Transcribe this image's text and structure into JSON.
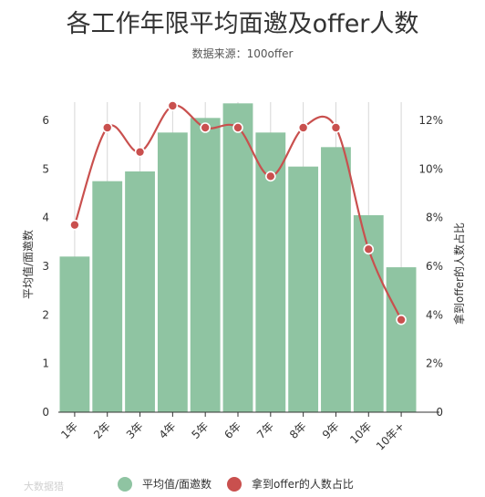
{
  "chart_data": {
    "type": "bar+line",
    "title": "各工作年限平均面邀及offer人数",
    "subtitle": "数据来源：100offer",
    "categories": [
      "1年",
      "2年",
      "3年",
      "4年",
      "5年",
      "6年",
      "7年",
      "8年",
      "9年",
      "10年",
      "10年+"
    ],
    "series": [
      {
        "name": "平均值/面邀数",
        "type": "bar",
        "axis": "left",
        "color": "#8fc4a2",
        "values": [
          3.2,
          4.75,
          4.95,
          5.75,
          6.05,
          6.35,
          5.75,
          5.05,
          5.45,
          4.05,
          2.98
        ]
      },
      {
        "name": "拿到offer的人数占比",
        "type": "line",
        "axis": "right",
        "color": "#c9504e",
        "values": [
          7.7,
          11.7,
          10.7,
          12.6,
          11.7,
          11.7,
          9.7,
          11.7,
          11.7,
          6.7,
          3.8
        ]
      }
    ],
    "ylabel": "平均值/面邀数",
    "ylabel_right": "拿到offer的人数占比",
    "y_left": {
      "min": 0,
      "max": 6,
      "ticks": [
        "0",
        "1",
        "2",
        "3",
        "4",
        "5",
        "6"
      ]
    },
    "y_right": {
      "min": 0,
      "max": 12,
      "ticks": [
        "0",
        "2%",
        "4%",
        "6%",
        "8%",
        "10%",
        "12%"
      ]
    },
    "grid": "vertical",
    "legend_position": "bottom-center"
  },
  "watermark": "大数据猎"
}
